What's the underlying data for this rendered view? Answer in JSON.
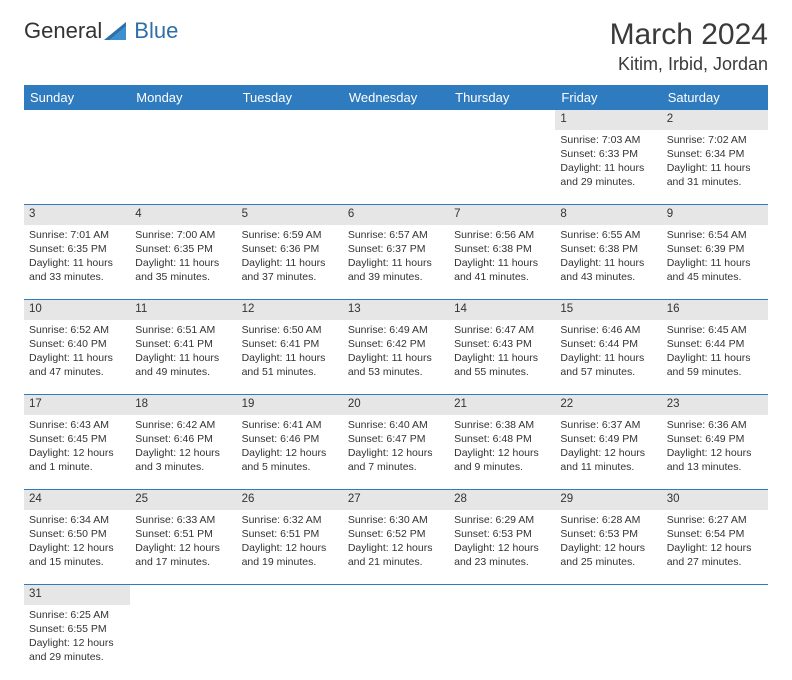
{
  "brand": {
    "part1": "General",
    "part2": "Blue"
  },
  "title": "March 2024",
  "location": "Kitim, Irbid, Jordan",
  "weekdays": [
    "Sunday",
    "Monday",
    "Tuesday",
    "Wednesday",
    "Thursday",
    "Friday",
    "Saturday"
  ],
  "colors": {
    "header_bg": "#2f7bbf",
    "header_text": "#ffffff",
    "daynum_bg": "#e6e6e6",
    "rule": "#2f7bbf",
    "brand_blue": "#2f6fa8"
  },
  "weeks": [
    [
      null,
      null,
      null,
      null,
      null,
      {
        "n": "1",
        "sunrise": "Sunrise: 7:03 AM",
        "sunset": "Sunset: 6:33 PM",
        "daylight": "Daylight: 11 hours and 29 minutes."
      },
      {
        "n": "2",
        "sunrise": "Sunrise: 7:02 AM",
        "sunset": "Sunset: 6:34 PM",
        "daylight": "Daylight: 11 hours and 31 minutes."
      }
    ],
    [
      {
        "n": "3",
        "sunrise": "Sunrise: 7:01 AM",
        "sunset": "Sunset: 6:35 PM",
        "daylight": "Daylight: 11 hours and 33 minutes."
      },
      {
        "n": "4",
        "sunrise": "Sunrise: 7:00 AM",
        "sunset": "Sunset: 6:35 PM",
        "daylight": "Daylight: 11 hours and 35 minutes."
      },
      {
        "n": "5",
        "sunrise": "Sunrise: 6:59 AM",
        "sunset": "Sunset: 6:36 PM",
        "daylight": "Daylight: 11 hours and 37 minutes."
      },
      {
        "n": "6",
        "sunrise": "Sunrise: 6:57 AM",
        "sunset": "Sunset: 6:37 PM",
        "daylight": "Daylight: 11 hours and 39 minutes."
      },
      {
        "n": "7",
        "sunrise": "Sunrise: 6:56 AM",
        "sunset": "Sunset: 6:38 PM",
        "daylight": "Daylight: 11 hours and 41 minutes."
      },
      {
        "n": "8",
        "sunrise": "Sunrise: 6:55 AM",
        "sunset": "Sunset: 6:38 PM",
        "daylight": "Daylight: 11 hours and 43 minutes."
      },
      {
        "n": "9",
        "sunrise": "Sunrise: 6:54 AM",
        "sunset": "Sunset: 6:39 PM",
        "daylight": "Daylight: 11 hours and 45 minutes."
      }
    ],
    [
      {
        "n": "10",
        "sunrise": "Sunrise: 6:52 AM",
        "sunset": "Sunset: 6:40 PM",
        "daylight": "Daylight: 11 hours and 47 minutes."
      },
      {
        "n": "11",
        "sunrise": "Sunrise: 6:51 AM",
        "sunset": "Sunset: 6:41 PM",
        "daylight": "Daylight: 11 hours and 49 minutes."
      },
      {
        "n": "12",
        "sunrise": "Sunrise: 6:50 AM",
        "sunset": "Sunset: 6:41 PM",
        "daylight": "Daylight: 11 hours and 51 minutes."
      },
      {
        "n": "13",
        "sunrise": "Sunrise: 6:49 AM",
        "sunset": "Sunset: 6:42 PM",
        "daylight": "Daylight: 11 hours and 53 minutes."
      },
      {
        "n": "14",
        "sunrise": "Sunrise: 6:47 AM",
        "sunset": "Sunset: 6:43 PM",
        "daylight": "Daylight: 11 hours and 55 minutes."
      },
      {
        "n": "15",
        "sunrise": "Sunrise: 6:46 AM",
        "sunset": "Sunset: 6:44 PM",
        "daylight": "Daylight: 11 hours and 57 minutes."
      },
      {
        "n": "16",
        "sunrise": "Sunrise: 6:45 AM",
        "sunset": "Sunset: 6:44 PM",
        "daylight": "Daylight: 11 hours and 59 minutes."
      }
    ],
    [
      {
        "n": "17",
        "sunrise": "Sunrise: 6:43 AM",
        "sunset": "Sunset: 6:45 PM",
        "daylight": "Daylight: 12 hours and 1 minute."
      },
      {
        "n": "18",
        "sunrise": "Sunrise: 6:42 AM",
        "sunset": "Sunset: 6:46 PM",
        "daylight": "Daylight: 12 hours and 3 minutes."
      },
      {
        "n": "19",
        "sunrise": "Sunrise: 6:41 AM",
        "sunset": "Sunset: 6:46 PM",
        "daylight": "Daylight: 12 hours and 5 minutes."
      },
      {
        "n": "20",
        "sunrise": "Sunrise: 6:40 AM",
        "sunset": "Sunset: 6:47 PM",
        "daylight": "Daylight: 12 hours and 7 minutes."
      },
      {
        "n": "21",
        "sunrise": "Sunrise: 6:38 AM",
        "sunset": "Sunset: 6:48 PM",
        "daylight": "Daylight: 12 hours and 9 minutes."
      },
      {
        "n": "22",
        "sunrise": "Sunrise: 6:37 AM",
        "sunset": "Sunset: 6:49 PM",
        "daylight": "Daylight: 12 hours and 11 minutes."
      },
      {
        "n": "23",
        "sunrise": "Sunrise: 6:36 AM",
        "sunset": "Sunset: 6:49 PM",
        "daylight": "Daylight: 12 hours and 13 minutes."
      }
    ],
    [
      {
        "n": "24",
        "sunrise": "Sunrise: 6:34 AM",
        "sunset": "Sunset: 6:50 PM",
        "daylight": "Daylight: 12 hours and 15 minutes."
      },
      {
        "n": "25",
        "sunrise": "Sunrise: 6:33 AM",
        "sunset": "Sunset: 6:51 PM",
        "daylight": "Daylight: 12 hours and 17 minutes."
      },
      {
        "n": "26",
        "sunrise": "Sunrise: 6:32 AM",
        "sunset": "Sunset: 6:51 PM",
        "daylight": "Daylight: 12 hours and 19 minutes."
      },
      {
        "n": "27",
        "sunrise": "Sunrise: 6:30 AM",
        "sunset": "Sunset: 6:52 PM",
        "daylight": "Daylight: 12 hours and 21 minutes."
      },
      {
        "n": "28",
        "sunrise": "Sunrise: 6:29 AM",
        "sunset": "Sunset: 6:53 PM",
        "daylight": "Daylight: 12 hours and 23 minutes."
      },
      {
        "n": "29",
        "sunrise": "Sunrise: 6:28 AM",
        "sunset": "Sunset: 6:53 PM",
        "daylight": "Daylight: 12 hours and 25 minutes."
      },
      {
        "n": "30",
        "sunrise": "Sunrise: 6:27 AM",
        "sunset": "Sunset: 6:54 PM",
        "daylight": "Daylight: 12 hours and 27 minutes."
      }
    ],
    [
      {
        "n": "31",
        "sunrise": "Sunrise: 6:25 AM",
        "sunset": "Sunset: 6:55 PM",
        "daylight": "Daylight: 12 hours and 29 minutes."
      },
      null,
      null,
      null,
      null,
      null,
      null
    ]
  ]
}
